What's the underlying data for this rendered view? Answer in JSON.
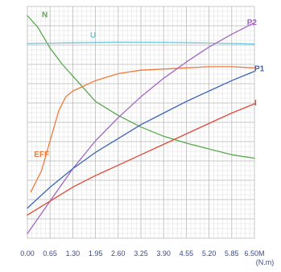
{
  "chart_data": {
    "type": "line",
    "title": "",
    "xlabel": "(N.m)",
    "ylabel": "",
    "x_ticks": [
      "0.00",
      "0.65",
      "1.30",
      "1.95",
      "2.60",
      "3.25",
      "3.90",
      "4.55",
      "5.20",
      "5.85",
      "6.50M"
    ],
    "xlim": [
      0,
      6.5
    ],
    "ylim": [
      0,
      100
    ],
    "grid": true,
    "legend": "none",
    "series": [
      {
        "name": "N",
        "color": "#5aa84e",
        "points": [
          [
            0,
            96
          ],
          [
            0.3,
            91
          ],
          [
            0.65,
            82
          ],
          [
            1.0,
            75
          ],
          [
            1.3,
            70
          ],
          [
            1.95,
            59
          ],
          [
            2.6,
            53
          ],
          [
            3.25,
            48
          ],
          [
            3.9,
            44
          ],
          [
            4.55,
            41
          ],
          [
            5.2,
            38.5
          ],
          [
            5.85,
            36
          ],
          [
            6.5,
            34.5
          ]
        ]
      },
      {
        "name": "U",
        "color": "#6ec6d8",
        "points": [
          [
            0,
            84
          ],
          [
            1.3,
            84.3
          ],
          [
            2.6,
            84.6
          ],
          [
            3.9,
            84.5
          ],
          [
            5.2,
            84.2
          ],
          [
            6.5,
            83.8
          ]
        ]
      },
      {
        "name": "EFF",
        "color": "#ee7b3a",
        "points": [
          [
            0.1,
            20
          ],
          [
            0.4,
            29
          ],
          [
            0.65,
            42
          ],
          [
            0.9,
            55
          ],
          [
            1.1,
            61
          ],
          [
            1.3,
            63.5
          ],
          [
            1.95,
            68
          ],
          [
            2.6,
            71
          ],
          [
            3.25,
            72.5
          ],
          [
            3.9,
            73
          ],
          [
            4.55,
            73.5
          ],
          [
            5.2,
            74
          ],
          [
            5.85,
            74
          ],
          [
            6.5,
            73.5
          ]
        ]
      },
      {
        "name": "P2",
        "color": "#a066c2",
        "points": [
          [
            0,
            2
          ],
          [
            0.65,
            16
          ],
          [
            1.3,
            30
          ],
          [
            1.95,
            42
          ],
          [
            2.6,
            52
          ],
          [
            3.25,
            61
          ],
          [
            3.9,
            69
          ],
          [
            4.55,
            76
          ],
          [
            5.2,
            82.5
          ],
          [
            5.85,
            88
          ],
          [
            6.5,
            93
          ]
        ]
      },
      {
        "name": "P1",
        "color": "#3b64b5",
        "points": [
          [
            0,
            13
          ],
          [
            0.65,
            22
          ],
          [
            1.3,
            30
          ],
          [
            1.95,
            37
          ],
          [
            2.6,
            43
          ],
          [
            3.25,
            49
          ],
          [
            3.9,
            54
          ],
          [
            4.55,
            59
          ],
          [
            5.2,
            63.5
          ],
          [
            5.85,
            68
          ],
          [
            6.5,
            72
          ]
        ]
      },
      {
        "name": "I",
        "color": "#dd4a3a",
        "points": [
          [
            0,
            10
          ],
          [
            0.65,
            16
          ],
          [
            1.3,
            22
          ],
          [
            1.95,
            27
          ],
          [
            2.6,
            31.5
          ],
          [
            3.25,
            36
          ],
          [
            3.9,
            40.5
          ],
          [
            4.55,
            45
          ],
          [
            5.2,
            49.5
          ],
          [
            5.85,
            54
          ],
          [
            6.5,
            58
          ]
        ]
      }
    ]
  }
}
